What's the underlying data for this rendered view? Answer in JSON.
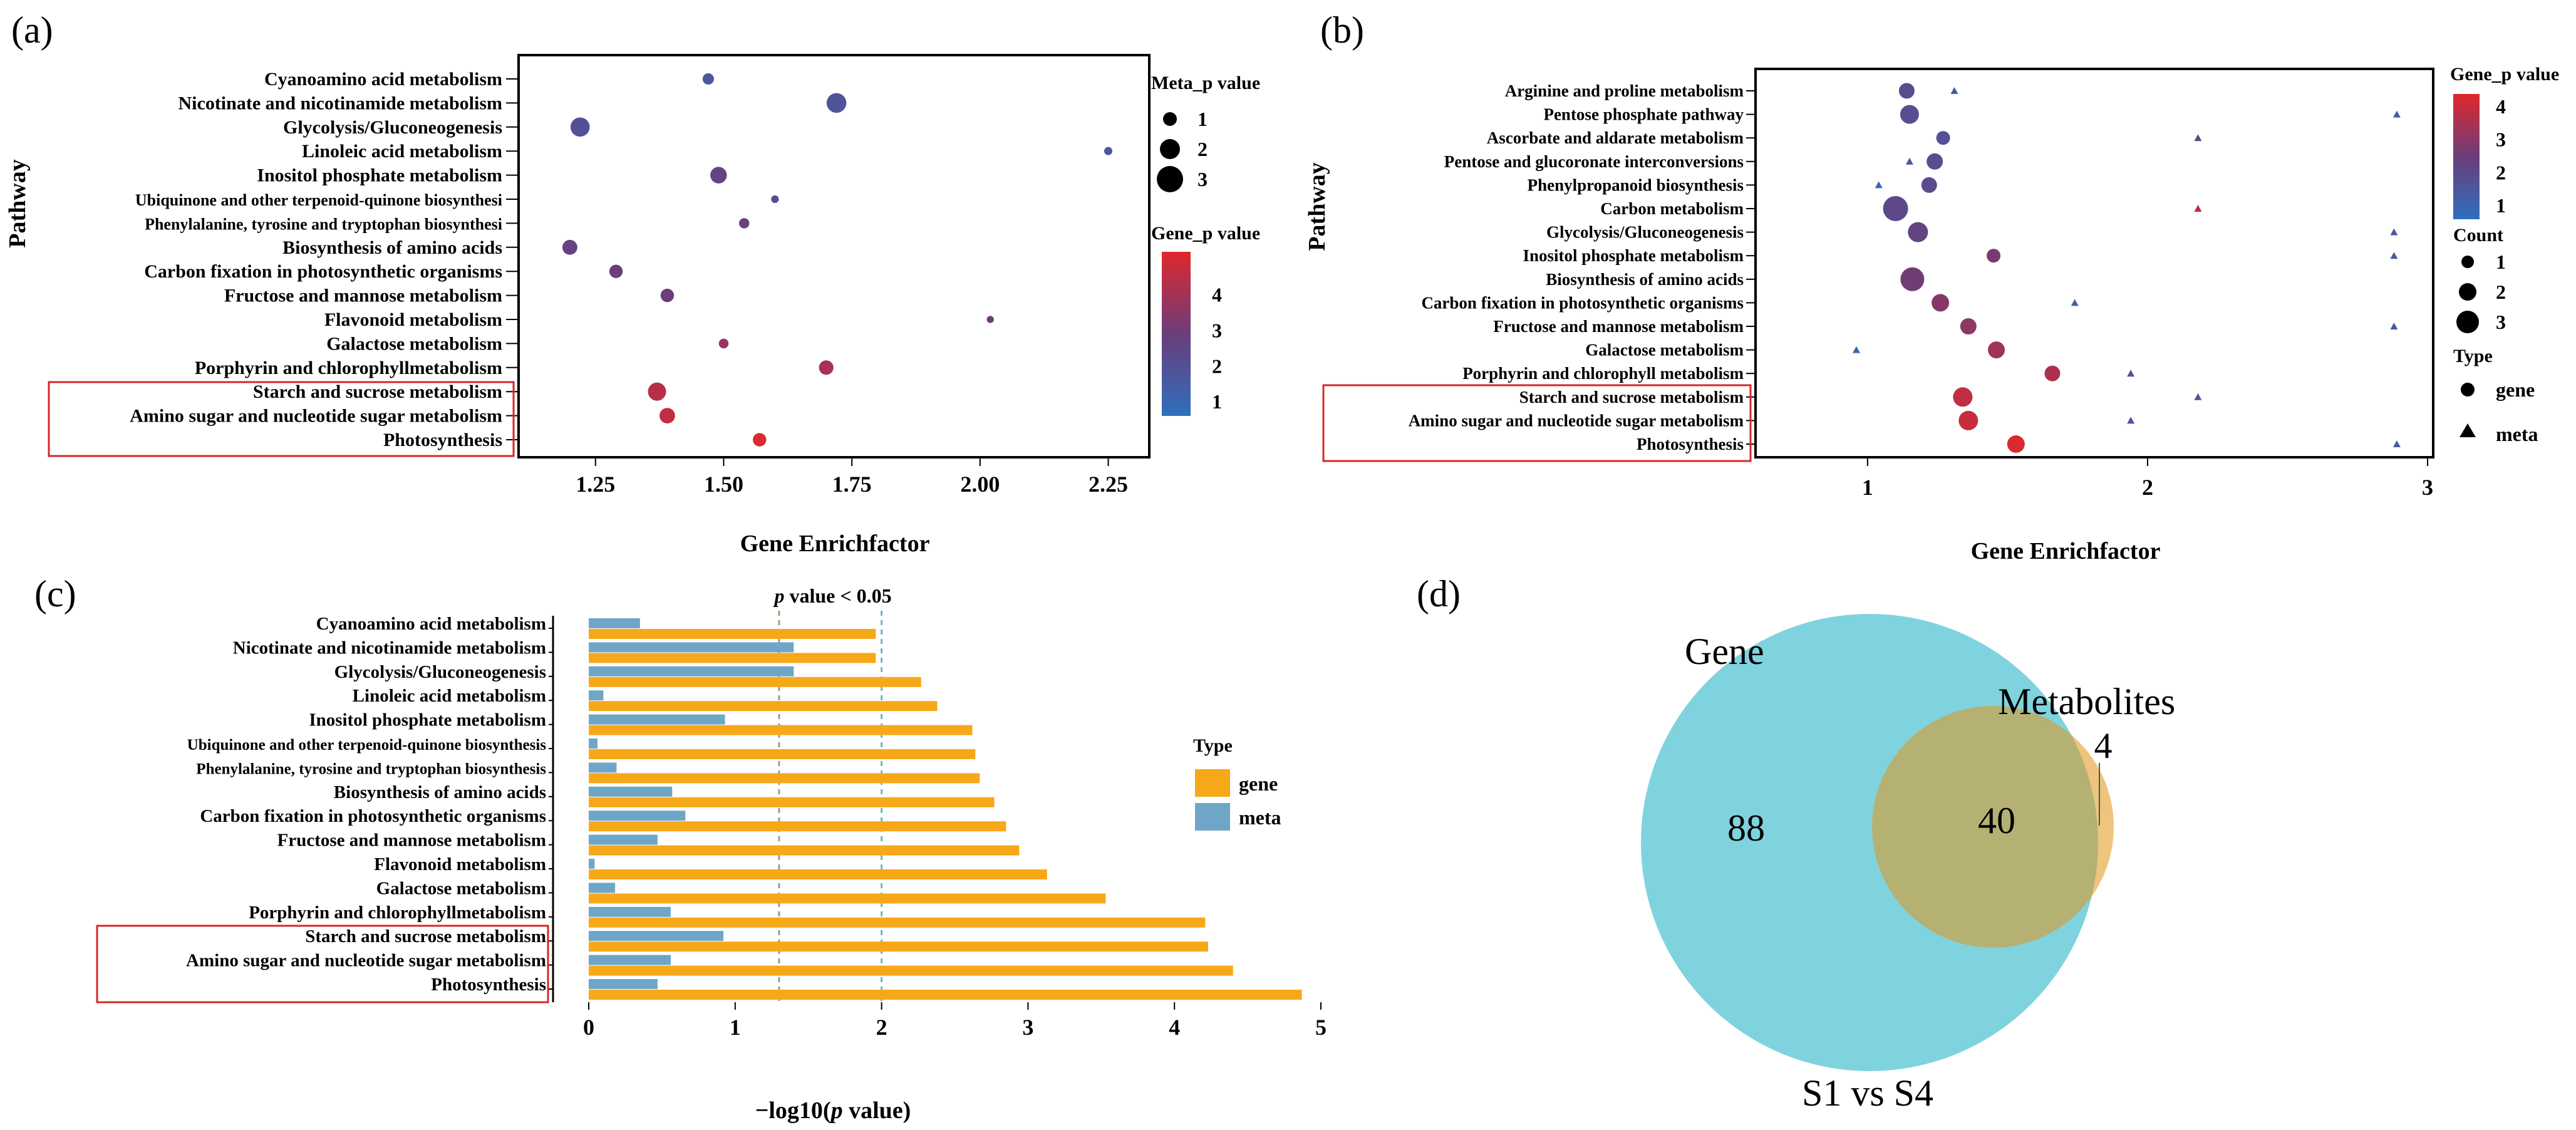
{
  "colors": {
    "gene_bar": "#f7a818",
    "meta_bar": "#6fa6c8",
    "venn_gene": "#7fd3df",
    "venn_meta": "#eec57e",
    "venn_overlap": "#b4b173",
    "highlight_box": "#d62728",
    "grad_low": "#2e6fbd",
    "grad_mid": "#6b3d7a",
    "grad_high": "#e0282c"
  },
  "chart_data": [
    {
      "panel": "(a)",
      "type": "scatter",
      "xlabel": "Gene Enrichfactor",
      "ylabel": "Pathway",
      "xlim": [
        1.1,
        2.33
      ],
      "xticks": [
        "1.25",
        "1.50",
        "1.75",
        "2.00",
        "2.25"
      ],
      "categories": [
        "Cyanoamino acid metabolism",
        "Nicotinate and nicotinamide metabolism",
        "Glycolysis/Gluconeogenesis",
        "Linoleic acid metabolism",
        "Inositol phosphate metabolism",
        "Ubiquinone and other terpenoid-quinone biosynthesi",
        "Phenylalanine, tyrosine and tryptophan biosynthesi",
        "Biosynthesis of amino acids",
        "Carbon fixation in photosynthetic organisms",
        "Fructose and mannose metabolism",
        "Flavonoid metabolism",
        "Galactose metabolism",
        "Porphyrin and chlorophyllmetabolism",
        "Starch and sucrose metabolism",
        "Amino sugar and nucleotide sugar metabolism",
        "Photosynthesis"
      ],
      "x": [
        1.47,
        1.72,
        1.22,
        2.25,
        1.49,
        1.6,
        1.54,
        1.2,
        1.29,
        1.39,
        2.02,
        1.5,
        1.7,
        1.37,
        1.39,
        1.57
      ],
      "size": [
        1.2,
        2.8,
        2.7,
        0.6,
        2.2,
        0.5,
        1.0,
        1.9,
        1.6,
        1.6,
        0.4,
        0.9,
        1.8,
        2.5,
        2.0,
        1.6
      ],
      "color": [
        2.0,
        2.1,
        2.2,
        2.0,
        2.7,
        2.3,
        2.8,
        2.8,
        3.0,
        3.0,
        3.0,
        3.7,
        4.0,
        4.3,
        4.5,
        4.9
      ],
      "highlighted": [
        "Starch and sucrose metabolism",
        "Amino sugar and nucleotide sugar metabolism",
        "Photosynthesis"
      ],
      "legend_size": {
        "title": "Meta_p value",
        "labels": [
          "1",
          "2",
          "3"
        ]
      },
      "legend_color": {
        "title": "Gene_p value",
        "labels": [
          "4",
          "3",
          "2",
          "1"
        ]
      }
    },
    {
      "panel": "(b)",
      "type": "scatter",
      "xlabel": "Gene Enrichfactor",
      "ylabel": "Pathway",
      "xlim": [
        0.6,
        3.02
      ],
      "xticks": [
        "1",
        "2",
        "3"
      ],
      "categories": [
        "Arginine and proline metabolism",
        "Pentose phosphate pathway",
        "Ascorbate and aldarate  metabolism",
        "Pentose and glucoronate interconversions",
        "Phenylpropanoid biosynthesis",
        "Carbon metabolism",
        "Glycolysis/Gluconeogenesis",
        "Inositol phosphate metabolism",
        "Biosynthesis of amino acids",
        "Carbon fixation in photosynthetic organisms",
        "Fructose and mannose metabolism",
        "Galactose metabolism",
        "Porphyrin and chlorophyll metabolism",
        "Starch and sucrose metabolism",
        "Amino sugar and nucleotide sugar metabolism",
        "Photosynthesis"
      ],
      "gene_x": [
        1.14,
        1.15,
        1.27,
        1.24,
        1.22,
        1.1,
        1.18,
        1.45,
        1.16,
        1.26,
        1.36,
        1.46,
        1.66,
        1.34,
        1.36,
        1.53
      ],
      "gene_count": [
        1.5,
        2.0,
        1.2,
        1.6,
        1.5,
        3.0,
        2.2,
        1.2,
        2.8,
        1.8,
        1.6,
        1.7,
        1.5,
        2.1,
        2.1,
        1.8
      ],
      "gene_p": [
        2.2,
        2.2,
        2.1,
        2.2,
        2.3,
        2.4,
        2.6,
        3.0,
        2.9,
        3.2,
        3.3,
        3.6,
        3.8,
        4.1,
        4.2,
        4.5
      ],
      "meta_x": [
        1.31,
        2.89,
        2.18,
        1.15,
        1.04,
        2.18,
        2.88,
        2.88,
        null,
        1.74,
        2.88,
        0.96,
        1.94,
        2.18,
        1.94,
        2.89
      ],
      "meta_p": [
        1.8,
        1.8,
        2.5,
        1.9,
        1.2,
        4.0,
        1.8,
        1.8,
        null,
        1.5,
        1.8,
        1.3,
        2.0,
        2.0,
        2.0,
        1.6
      ],
      "highlighted": [
        "Starch and sucrose metabolism",
        "Amino sugar and nucleotide sugar metabolism",
        "Photosynthesis"
      ],
      "legend_color": {
        "title": "Gene_p value",
        "labels": [
          "4",
          "3",
          "2",
          "1"
        ]
      },
      "legend_size": {
        "title": "Count",
        "labels": [
          "1",
          "2",
          "3"
        ]
      },
      "legend_type": {
        "title": "Type",
        "labels": [
          "gene",
          "meta"
        ]
      }
    },
    {
      "panel": "(c)",
      "type": "bar",
      "orientation": "horizontal",
      "title": "p value < 0.05",
      "xlabel": "−log10(p value)",
      "xlim": [
        -0.25,
        5.1
      ],
      "xticks": [
        "0",
        "1",
        "2",
        "3",
        "4",
        "5"
      ],
      "threshold_lines": [
        1.3,
        2.0
      ],
      "categories": [
        "Cyanoamino acid metabolism",
        "Nicotinate and nicotinamide metabolism",
        "Glycolysis/Gluconeogenesis",
        "Linoleic acid metabolism",
        "Inositol phosphate metabolism",
        "Ubiquinone and other terpenoid-quinone biosynthesis",
        "Phenylalanine, tyrosine and tryptophan biosynthesis",
        "Biosynthesis of amino acids",
        "Carbon fixation in photosynthetic organisms",
        "Fructose and mannose metabolism",
        "Flavonoid metabolism",
        "Galactose metabolism",
        "Porphyrin and chlorophyllmetabolism",
        "Starch and sucrose metabolism",
        "Amino sugar and nucleotide sugar metabolism",
        "Photosynthesis"
      ],
      "series": [
        {
          "name": "gene",
          "values": [
            1.96,
            1.96,
            2.27,
            2.38,
            2.62,
            2.64,
            2.67,
            2.77,
            2.85,
            2.94,
            3.13,
            3.53,
            4.21,
            4.23,
            4.4,
            4.87
          ]
        },
        {
          "name": "meta",
          "values": [
            0.35,
            1.4,
            1.4,
            0.1,
            0.93,
            0.06,
            0.19,
            0.57,
            0.66,
            0.47,
            0.04,
            0.18,
            0.56,
            0.92,
            0.56,
            0.47
          ]
        }
      ],
      "highlighted": [
        "Starch and sucrose metabolism",
        "Amino sugar and nucleotide sugar metabolism",
        "Photosynthesis"
      ],
      "legend": {
        "title": "Type",
        "labels": [
          "gene",
          "meta"
        ]
      }
    },
    {
      "panel": "(d)",
      "type": "venn",
      "sets": [
        "Gene",
        "Metabolites"
      ],
      "values": {
        "gene_only": "88",
        "overlap": "40",
        "meta_only": "4"
      },
      "caption": "S1 vs S4"
    }
  ]
}
